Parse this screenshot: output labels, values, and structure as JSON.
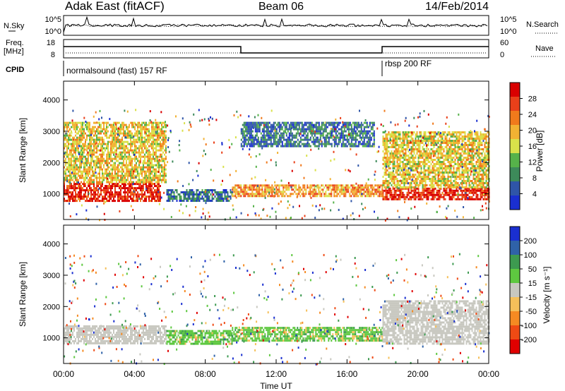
{
  "header": {
    "station": "Adak East (fitACF)",
    "beam": "Beam 06",
    "date": "14/Feb/2014"
  },
  "top_panels": {
    "nsky_label": "N.Sky",
    "nsearch_label": "N.Search",
    "noise_tick_hi": "10^5",
    "noise_tick_lo": "10^0",
    "freq_label_1": "Freq.",
    "freq_label_2": "[MHz]",
    "freq_tick_hi": "18",
    "freq_tick_lo": "8",
    "nave_label": "Nave",
    "nave_tick_hi": "60",
    "nave_tick_lo": "0",
    "cpid_label": "CPID",
    "cpid_1": "normalsound (fast) 157 RF",
    "cpid_2": "rbsp 200 RF"
  },
  "colors": {
    "power": [
      "#1a2fd0",
      "#2f55a8",
      "#3d8a5a",
      "#56b24a",
      "#d9e14a",
      "#f2b233",
      "#f07a1c",
      "#e9401a",
      "#d90000"
    ],
    "velocity": [
      "#e00000",
      "#ef4a14",
      "#f58a22",
      "#f5c05a",
      "#c8c8c0",
      "#5ec840",
      "#3d9a50",
      "#2f62a8",
      "#1a2fd0"
    ],
    "ground_scatter": "#c8c8c0"
  },
  "chart_data": [
    {
      "type": "heatmap",
      "name": "power",
      "xlabel": "",
      "ylabel": "Slant Range [km]",
      "x_ticks": [
        "00:00",
        "04:00",
        "08:00",
        "12:00",
        "16:00",
        "20:00",
        "00:00"
      ],
      "x_tick_hours": [
        0,
        4,
        8,
        12,
        16,
        20,
        24
      ],
      "xlim": [
        0,
        24
      ],
      "y_ticks": [
        1000,
        2000,
        3000,
        4000
      ],
      "ylim": [
        180,
        4600
      ],
      "colorbar_label": "Power [dB]",
      "colorbar_ticks": [
        4,
        8,
        12,
        16,
        20,
        24,
        28
      ],
      "colorbar_range": [
        0,
        32
      ],
      "regions": [
        {
          "t": [
            0,
            5.5
          ],
          "range": [
            800,
            1350
          ],
          "value": 30
        },
        {
          "t": [
            0,
            5.8
          ],
          "range": [
            1350,
            3300
          ],
          "value": 18
        },
        {
          "t": [
            5.8,
            9.5
          ],
          "range": [
            800,
            1150
          ],
          "value": 6
        },
        {
          "t": [
            9.5,
            18.0
          ],
          "range": [
            900,
            1300
          ],
          "value": 22
        },
        {
          "t": [
            10,
            17.5
          ],
          "range": [
            2500,
            3300
          ],
          "value": 6
        },
        {
          "t": [
            18.0,
            24
          ],
          "range": [
            800,
            1200
          ],
          "value": 30
        },
        {
          "t": [
            18.0,
            24
          ],
          "range": [
            1200,
            3000
          ],
          "value": 18
        }
      ]
    },
    {
      "type": "heatmap",
      "name": "velocity",
      "xlabel": "Time UT",
      "ylabel": "Slant Range [km]",
      "x_ticks": [
        "00:00",
        "04:00",
        "08:00",
        "12:00",
        "16:00",
        "20:00",
        "00:00"
      ],
      "x_tick_hours": [
        0,
        4,
        8,
        12,
        16,
        20,
        24
      ],
      "xlim": [
        0,
        24
      ],
      "y_ticks": [
        1000,
        2000,
        3000,
        4000
      ],
      "ylim": [
        180,
        4600
      ],
      "colorbar_label": "Velocity [m s⁻¹]",
      "colorbar_ticks": [
        200,
        100,
        50,
        15,
        -15,
        -50,
        -100,
        -200
      ],
      "colorbar_range": [
        -250,
        250
      ],
      "regions": [
        {
          "t": [
            0,
            5.8
          ],
          "range": [
            800,
            1400
          ],
          "value": 0,
          "ground_scatter": true
        },
        {
          "t": [
            5.8,
            9.5
          ],
          "range": [
            800,
            1250
          ],
          "value": 40
        },
        {
          "t": [
            9.5,
            18.0
          ],
          "range": [
            900,
            1350
          ],
          "value": 40
        },
        {
          "t": [
            18.0,
            24
          ],
          "range": [
            800,
            2200
          ],
          "value": 0,
          "ground_scatter": true
        }
      ]
    }
  ]
}
